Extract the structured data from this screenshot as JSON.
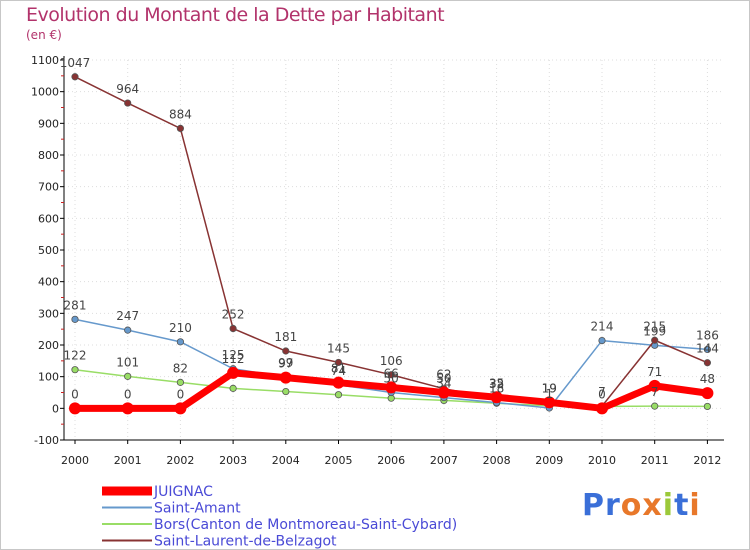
{
  "chart_data": {
    "type": "line",
    "title": "Evolution du Montant de la Dette par Habitant",
    "subtitle": "(en €)",
    "x": [
      "2000",
      "2001",
      "2002",
      "2003",
      "2004",
      "2005",
      "2006",
      "2007",
      "2008",
      "2009",
      "2010",
      "2011",
      "2012"
    ],
    "ylim": [
      -100,
      1100
    ],
    "yticks": [
      -100,
      0,
      100,
      200,
      300,
      400,
      500,
      600,
      700,
      800,
      900,
      1000,
      1100
    ],
    "series": [
      {
        "name": "JUIGNAC",
        "color": "#ff0000",
        "values": [
          0,
          0,
          0,
          112,
          97,
          81,
          66,
          50,
          35,
          19,
          0,
          71,
          48
        ],
        "labels": [
          "0",
          "0",
          "0",
          "112",
          "97",
          "81",
          "66",
          "50",
          "35",
          "19",
          "0",
          "71",
          "48"
        ]
      },
      {
        "name": "Saint-Amant",
        "color": "#6699cc",
        "values": [
          281,
          247,
          210,
          125,
          99,
          74,
          50,
          34,
          18,
          1,
          214,
          199,
          186
        ],
        "labels": [
          "281",
          "247",
          "210",
          "125",
          "99",
          "74",
          "50",
          "34",
          "18",
          "1",
          "214",
          "199",
          "186"
        ]
      },
      {
        "name": "Bors(Canton de Montmoreau-Saint-Cybard)",
        "color": "#99dd66",
        "values": [
          122,
          101,
          82,
          63,
          53,
          43,
          32,
          25,
          16,
          8,
          6,
          7,
          6
        ],
        "labels": [
          "122",
          "101",
          "82",
          "",
          "",
          "",
          "",
          "",
          "",
          "",
          "",
          "7",
          ""
        ]
      },
      {
        "name": "Saint-Laurent-de-Belzagot",
        "color": "#883333",
        "values": [
          1047,
          964,
          884,
          252,
          181,
          145,
          106,
          62,
          32,
          19,
          7,
          215,
          144
        ],
        "labels": [
          "1047",
          "964",
          "884",
          "252",
          "181",
          "145",
          "106",
          "62",
          "32",
          "19",
          "7",
          "215",
          "144"
        ]
      }
    ],
    "legend": "bottom-left"
  },
  "logo": {
    "text": "Proxiti"
  }
}
